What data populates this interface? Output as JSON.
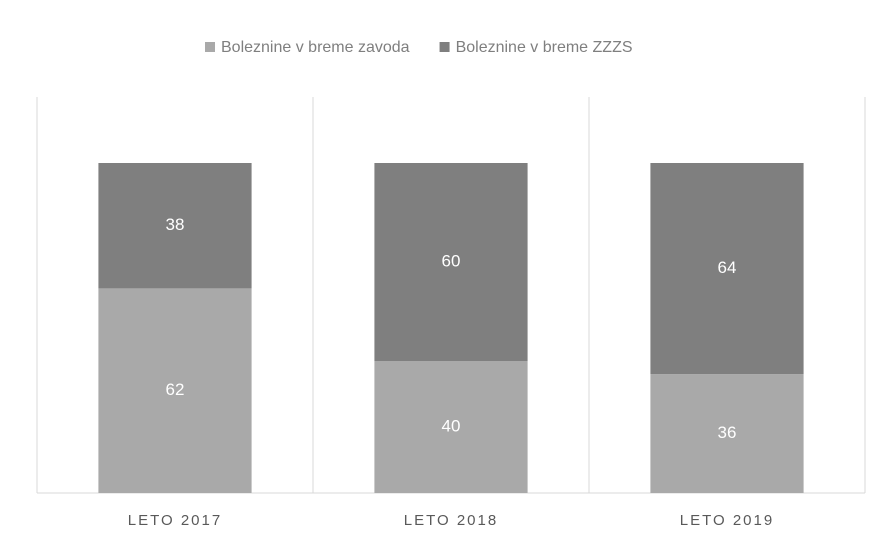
{
  "chart_data": {
    "type": "stacked-bar",
    "categories": [
      "LETO 2017",
      "LETO 2018",
      "LETO 2019"
    ],
    "series": [
      {
        "name": "Boleznine v breme zavoda",
        "color": "#a9a9a9",
        "values": [
          62,
          40,
          36
        ]
      },
      {
        "name": "Boleznine v breme ZZZS",
        "color": "#7f7f7f",
        "values": [
          38,
          60,
          64
        ]
      }
    ],
    "ylim": [
      0,
      120
    ],
    "legend": "top"
  }
}
